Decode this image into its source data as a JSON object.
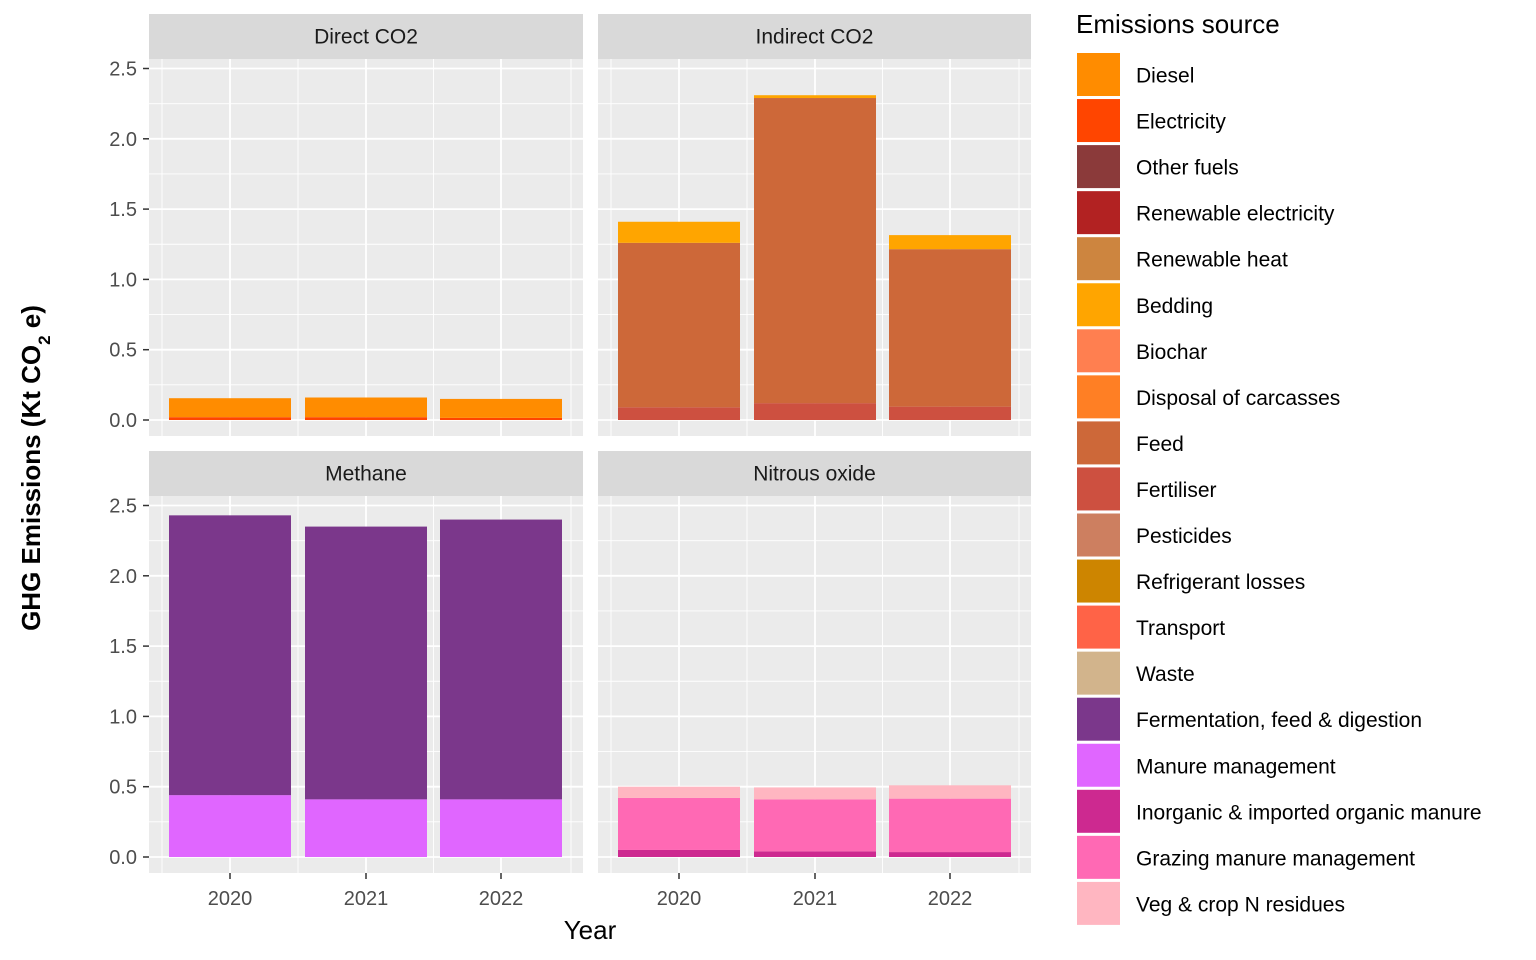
{
  "chart_data": {
    "type": "bar",
    "stacked": true,
    "faceted": true,
    "xlabel": "Year",
    "ylabel": {
      "prefix": "GHG Emissions (Kt CO",
      "subscript": "2",
      "suffix": " e)"
    },
    "categories": [
      "2020",
      "2021",
      "2022"
    ],
    "ylim": [
      0,
      2.5
    ],
    "yticks": [
      "0.0",
      "0.5",
      "1.0",
      "1.5",
      "2.0",
      "2.5"
    ],
    "grid": true,
    "legend_position": "right",
    "legend_title": "Emissions source",
    "legend": [
      {
        "name": "Diesel",
        "color": "#FF8C00"
      },
      {
        "name": "Electricity",
        "color": "#FF4500"
      },
      {
        "name": "Other fuels",
        "color": "#8B3A3A"
      },
      {
        "name": "Renewable electricity",
        "color": "#B22222"
      },
      {
        "name": "Renewable heat",
        "color": "#CD853F"
      },
      {
        "name": "Bedding",
        "color": "#FFA500"
      },
      {
        "name": "Biochar",
        "color": "#FF7F50"
      },
      {
        "name": "Disposal of carcasses",
        "color": "#FF7F24"
      },
      {
        "name": "Feed",
        "color": "#CD6839"
      },
      {
        "name": "Fertiliser",
        "color": "#CD5040"
      },
      {
        "name": "Pesticides",
        "color": "#CD7F60"
      },
      {
        "name": "Refrigerant losses",
        "color": "#CD8500"
      },
      {
        "name": "Transport",
        "color": "#FF6347"
      },
      {
        "name": "Waste",
        "color": "#D2B48C"
      },
      {
        "name": "Fermentation, feed & digestion",
        "color": "#7B378B"
      },
      {
        "name": "Manure management",
        "color": "#E066FF"
      },
      {
        "name": "Inorganic & imported organic manure",
        "color": "#CD2990"
      },
      {
        "name": "Grazing manure management",
        "color": "#FF69B4"
      },
      {
        "name": "Veg & crop N residues",
        "color": "#FFB6C1"
      }
    ],
    "panels": [
      {
        "title": "Direct CO2",
        "series": [
          {
            "name": "Electricity",
            "values": [
              0.02,
              0.02,
              0.015
            ]
          },
          {
            "name": "Diesel",
            "values": [
              0.135,
              0.14,
              0.135
            ]
          }
        ]
      },
      {
        "title": "Indirect CO2",
        "series": [
          {
            "name": "Fertiliser",
            "values": [
              0.09,
              0.12,
              0.095
            ]
          },
          {
            "name": "Feed",
            "values": [
              1.17,
              2.17,
              1.12
            ]
          },
          {
            "name": "Bedding",
            "values": [
              0.15,
              0.02,
              0.1
            ]
          }
        ]
      },
      {
        "title": "Methane",
        "series": [
          {
            "name": "Manure management",
            "values": [
              0.44,
              0.41,
              0.41
            ]
          },
          {
            "name": "Fermentation, feed & digestion",
            "values": [
              1.99,
              1.94,
              1.99
            ]
          }
        ]
      },
      {
        "title": "Nitrous oxide",
        "series": [
          {
            "name": "Inorganic & imported organic manure",
            "values": [
              0.05,
              0.04,
              0.035
            ]
          },
          {
            "name": "Grazing manure management",
            "values": [
              0.37,
              0.37,
              0.38
            ]
          },
          {
            "name": "Veg & crop N residues",
            "values": [
              0.08,
              0.085,
              0.095
            ]
          }
        ]
      }
    ]
  }
}
